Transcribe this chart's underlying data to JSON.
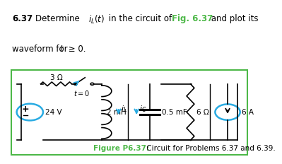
{
  "green_color": "#4db848",
  "cyan_color": "#29abe2",
  "black": "#000000",
  "white": "#ffffff",
  "resistor_label": "3 Ω",
  "voltage_label": "24 V",
  "inductor_label": "2 mH",
  "capacitor_label": "0.5 mF",
  "resistor2_label": "6 Ω",
  "current_label": "6 A",
  "t0_label": "t = 0",
  "caption_bold": "Figure P6.37:",
  "caption_rest": " Circuit for Problems 6.37 and 6.39."
}
